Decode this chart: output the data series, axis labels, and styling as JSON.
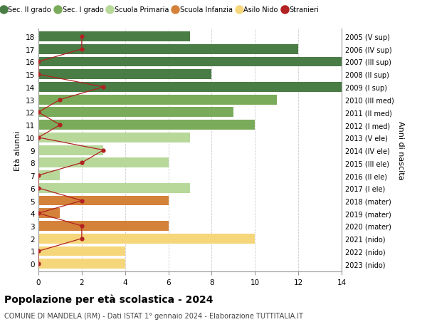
{
  "ages": [
    18,
    17,
    16,
    15,
    14,
    13,
    12,
    11,
    10,
    9,
    8,
    7,
    6,
    5,
    4,
    3,
    2,
    1,
    0
  ],
  "right_labels": [
    "2005 (V sup)",
    "2006 (IV sup)",
    "2007 (III sup)",
    "2008 (II sup)",
    "2009 (I sup)",
    "2010 (III med)",
    "2011 (II med)",
    "2012 (I med)",
    "2013 (V ele)",
    "2014 (IV ele)",
    "2015 (III ele)",
    "2016 (II ele)",
    "2017 (I ele)",
    "2018 (mater)",
    "2019 (mater)",
    "2020 (mater)",
    "2021 (nido)",
    "2022 (nido)",
    "2023 (nido)"
  ],
  "bar_values": [
    7,
    12,
    14,
    8,
    14,
    11,
    9,
    10,
    7,
    3,
    6,
    1,
    7,
    6,
    1,
    6,
    10,
    4,
    4
  ],
  "bar_colors": [
    "#4a7c45",
    "#4a7c45",
    "#4a7c45",
    "#4a7c45",
    "#4a7c45",
    "#7aab5a",
    "#7aab5a",
    "#7aab5a",
    "#b8d89a",
    "#b8d89a",
    "#b8d89a",
    "#b8d89a",
    "#b8d89a",
    "#d4813a",
    "#d4813a",
    "#d4813a",
    "#f5d67a",
    "#f5d67a",
    "#f5d67a"
  ],
  "stranieri_values": [
    2,
    2,
    0,
    0,
    3,
    1,
    0,
    1,
    0,
    3,
    2,
    0,
    0,
    2,
    0,
    2,
    2,
    0,
    0
  ],
  "stranieri_color": "#b22222",
  "title": "Popolazione per età scolastica - 2024",
  "subtitle": "COMUNE DI MANDELA (RM) - Dati ISTAT 1° gennaio 2024 - Elaborazione TUTTITALIA.IT",
  "ylabel": "Età alunni",
  "right_ylabel": "Anni di nascita",
  "xlim": [
    0,
    14
  ],
  "xticks": [
    0,
    2,
    4,
    6,
    8,
    10,
    12,
    14
  ],
  "legend_labels": [
    "Sec. II grado",
    "Sec. I grado",
    "Scuola Primaria",
    "Scuola Infanzia",
    "Asilo Nido",
    "Stranieri"
  ],
  "legend_colors": [
    "#4a7c45",
    "#7aab5a",
    "#b8d89a",
    "#d4813a",
    "#f5d67a",
    "#b22222"
  ],
  "bg_color": "#ffffff",
  "grid_color": "#cccccc",
  "bar_height": 0.78
}
